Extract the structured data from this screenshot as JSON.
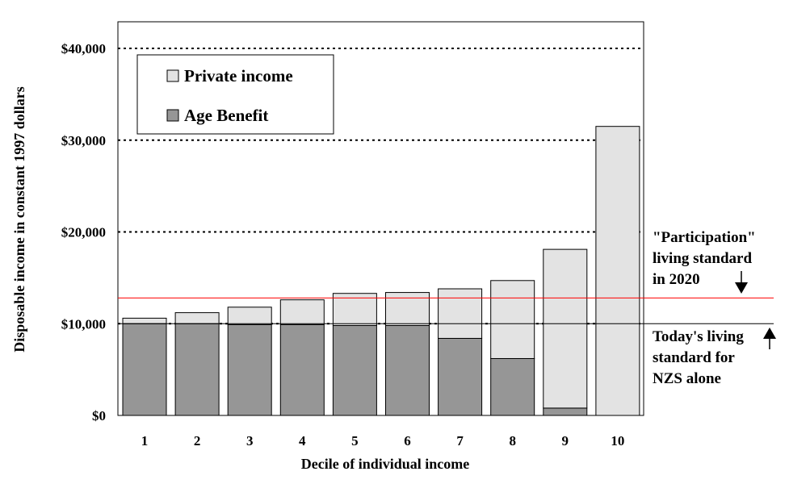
{
  "chart_data": {
    "type": "bar",
    "stacked": true,
    "xlabel": "Decile of individual income",
    "ylabel": "Disposable income in constant 1997 dollars",
    "ylim": [
      0,
      40000
    ],
    "categories": [
      "1",
      "2",
      "3",
      "4",
      "5",
      "6",
      "7",
      "8",
      "9",
      "10"
    ],
    "series": [
      {
        "name": "Age Benefit",
        "color": "#969696",
        "values": [
          10000,
          10000,
          9900,
          9900,
          9800,
          9800,
          8400,
          6200,
          800,
          0
        ]
      },
      {
        "name": "Private income",
        "color": "#e3e3e3",
        "values": [
          600,
          1200,
          1900,
          2700,
          3500,
          3600,
          5400,
          8500,
          17300,
          31500
        ]
      }
    ],
    "yticks": [
      {
        "value": 0,
        "label": "$0"
      },
      {
        "value": 10000,
        "label": "$10,000"
      },
      {
        "value": 20000,
        "label": "$20,000"
      },
      {
        "value": 30000,
        "label": "$30,000"
      },
      {
        "value": 40000,
        "label": "$40,000"
      }
    ],
    "dotted_gridlines": [
      10000,
      20000,
      30000,
      40000
    ],
    "legend_position": "top-left",
    "reference_lines": [
      {
        "value": 12800,
        "color": "#ff0000",
        "label_lines": [
          "\"Participation\"",
          "living standard",
          "in 2020"
        ],
        "arrow": "down"
      },
      {
        "value": 10000,
        "color": "#000000",
        "label_lines": [
          "Today's living",
          "standard for",
          "NZS alone"
        ],
        "arrow": "up"
      }
    ]
  }
}
